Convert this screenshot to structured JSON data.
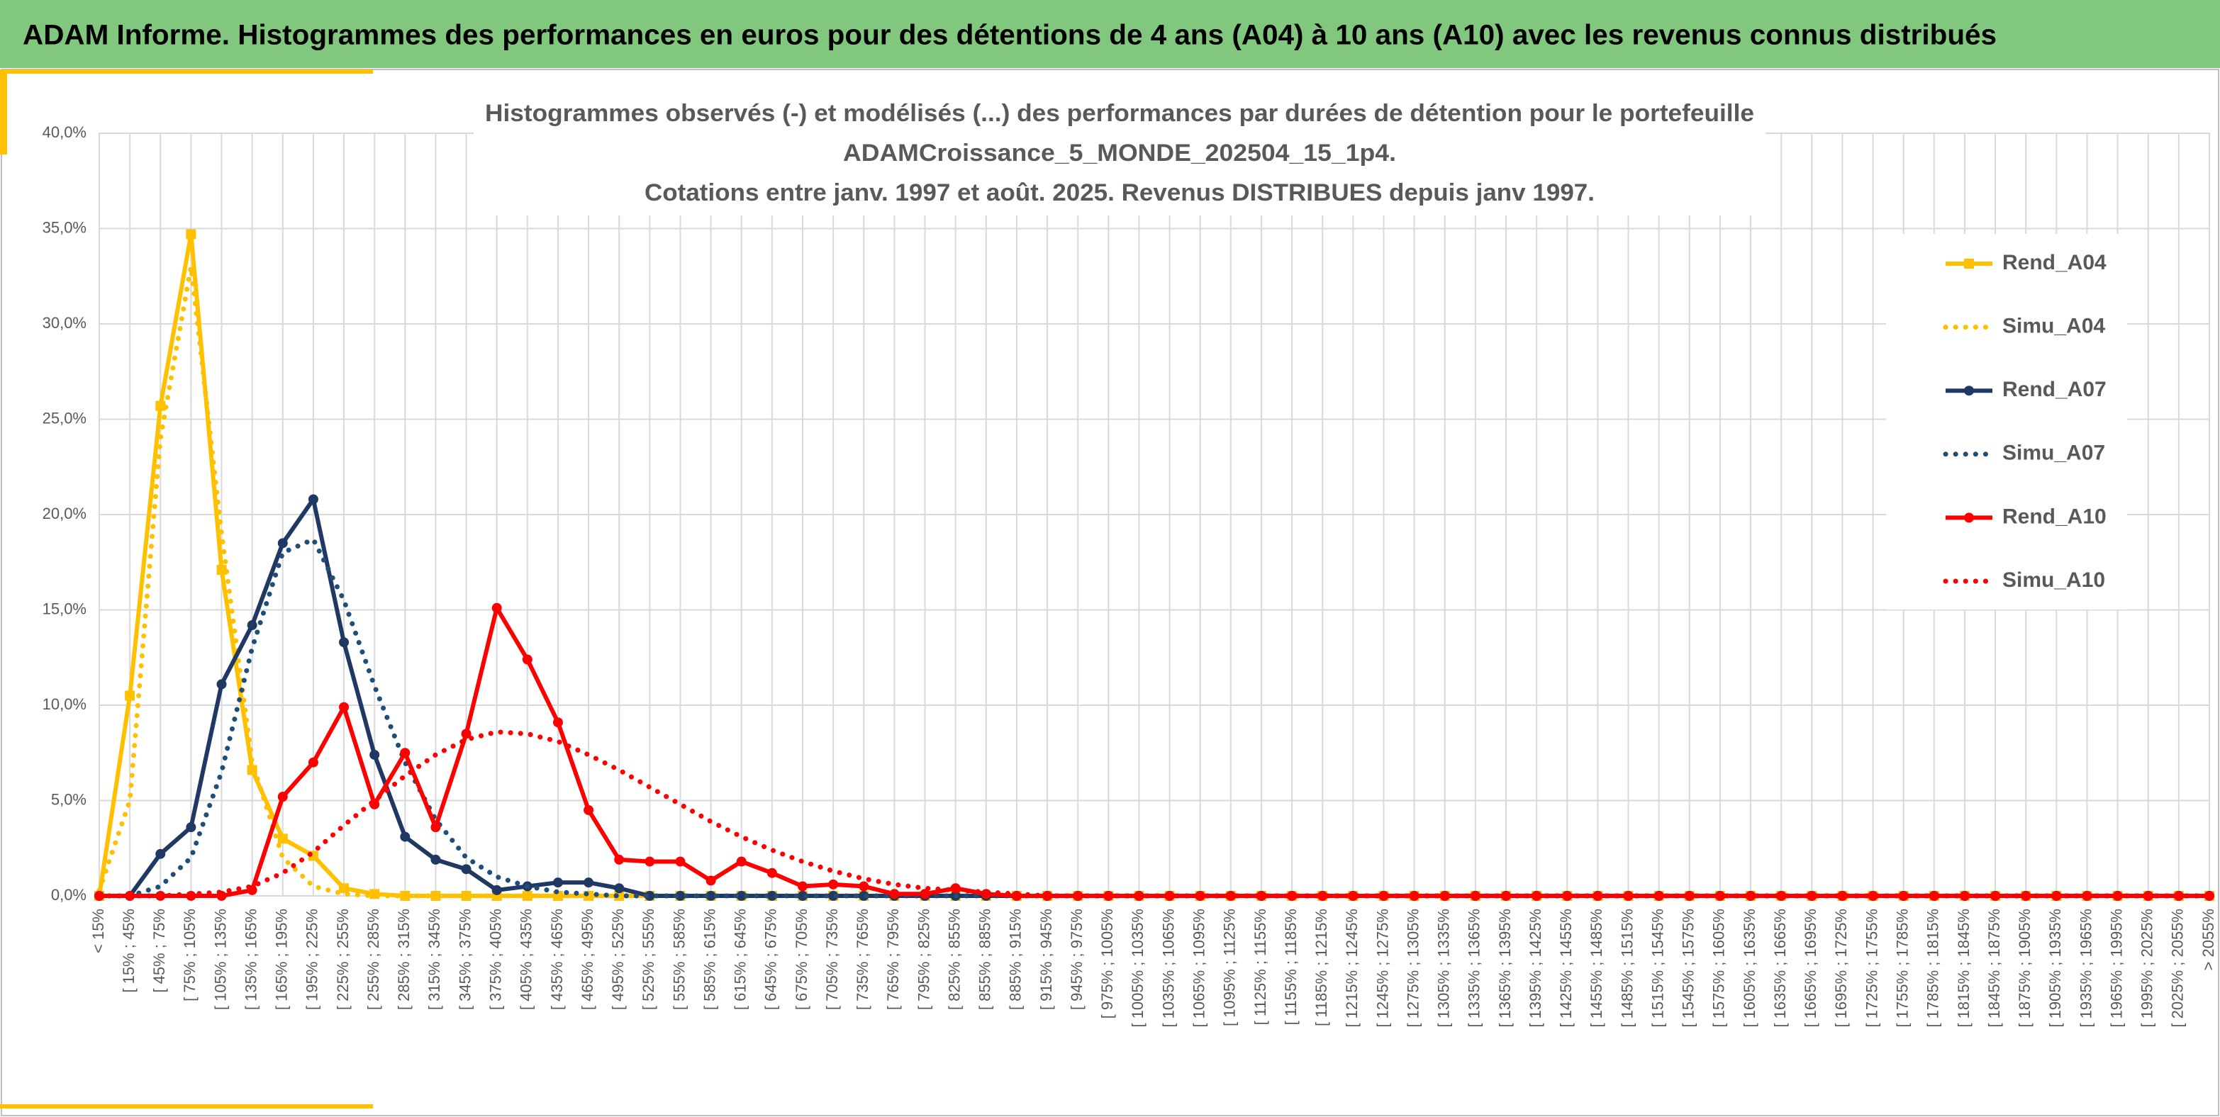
{
  "header": {
    "title": "ADAM Informe. Histogrammes des performances en euros pour des détentions de 4 ans (A04) à 10 ans (A10) avec les revenus connus distribués"
  },
  "chart_data": {
    "type": "line",
    "title": [
      "Histogrammes observés (-) et modélisés (...) des performances par durées de détention pour le portefeuille",
      "ADAMCroissance_5_MONDE_202504_15_1p4.",
      "Cotations entre janv. 1997 et août. 2025. Revenus DISTRIBUES depuis janv 1997."
    ],
    "categories": [
      "< 15%",
      "[ 15% ; 45%",
      "[ 45% ; 75%",
      "[ 75% ; 105%",
      "[ 105% ; 135%",
      "[ 135% ; 165%",
      "[ 165% ; 195%",
      "[ 195% ; 225%",
      "[ 225% ; 255%",
      "[ 255% ; 285%",
      "[ 285% ; 315%",
      "[ 315% ; 345%",
      "[ 345% ; 375%",
      "[ 375% ; 405%",
      "[ 405% ; 435%",
      "[ 435% ; 465%",
      "[ 465% ; 495%",
      "[ 495% ; 525%",
      "[ 525% ; 555%",
      "[ 555% ; 585%",
      "[ 585% ; 615%",
      "[ 615% ; 645%",
      "[ 645% ; 675%",
      "[ 675% ; 705%",
      "[ 705% ; 735%",
      "[ 735% ; 765%",
      "[ 765% ; 795%",
      "[ 795% ; 825%",
      "[ 825% ; 855%",
      "[ 855% ; 885%",
      "[ 885% ; 915%",
      "[ 915% ; 945%",
      "[ 945% ; 975%",
      "[ 975% ; 1005%",
      "[ 1005% ; 1035%",
      "[ 1035% ; 1065%",
      "[ 1065% ; 1095%",
      "[ 1095% ; 1125%",
      "[ 1125% ; 1155%",
      "[ 1155% ; 1185%",
      "[ 1185% ; 1215%",
      "[ 1215% ; 1245%",
      "[ 1245% ; 1275%",
      "[ 1275% ; 1305%",
      "[ 1305% ; 1335%",
      "[ 1335% ; 1365%",
      "[ 1365% ; 1395%",
      "[ 1395% ; 1425%",
      "[ 1425% ; 1455%",
      "[ 1455% ; 1485%",
      "[ 1485% ; 1515%",
      "[ 1515% ; 1545%",
      "[ 1545% ; 1575%",
      "[ 1575% ; 1605%",
      "[ 1605% ; 1635%",
      "[ 1635% ; 1665%",
      "[ 1665% ; 1695%",
      "[ 1695% ; 1725%",
      "[ 1725% ; 1755%",
      "[ 1755% ; 1785%",
      "[ 1785% ; 1815%",
      "[ 1815% ; 1845%",
      "[ 1845% ; 1875%",
      "[ 1875% ; 1905%",
      "[ 1905% ; 1935%",
      "[ 1935% ; 1965%",
      "[ 1965% ; 1995%",
      "[ 1995% ; 2025%",
      "[ 2025% ; 2055%",
      "> 2055%"
    ],
    "series": [
      {
        "name": "Rend_A04",
        "color": "#FFC000",
        "dash": "solid",
        "marker": "square",
        "values": [
          0,
          10.5,
          25.7,
          34.7,
          17.1,
          6.6,
          3.0,
          2.1,
          0.4,
          0.1,
          0,
          0,
          0,
          0,
          0,
          0,
          0,
          0,
          0,
          0,
          0,
          0,
          0,
          0,
          0,
          0,
          0,
          0,
          0,
          0,
          0,
          0,
          0,
          0,
          0,
          0,
          0,
          0,
          0,
          0,
          0,
          0,
          0,
          0,
          0,
          0,
          0,
          0,
          0,
          0,
          0,
          0,
          0,
          0,
          0,
          0,
          0,
          0,
          0,
          0,
          0,
          0,
          0,
          0,
          0,
          0,
          0,
          0,
          0,
          0
        ]
      },
      {
        "name": "Simu_A04",
        "color": "#FFC000",
        "dash": "dotted",
        "marker": null,
        "values": [
          0.3,
          5,
          24,
          33,
          19,
          7,
          2,
          0.5,
          0.1,
          0,
          0,
          0,
          0,
          0,
          0,
          0,
          0,
          0,
          0,
          0,
          0,
          0,
          0,
          0,
          0,
          0,
          0,
          0,
          0,
          0,
          0,
          0,
          0,
          0,
          0,
          0,
          0,
          0,
          0,
          0,
          0,
          0,
          0,
          0,
          0,
          0,
          0,
          0,
          0,
          0,
          0,
          0,
          0,
          0,
          0,
          0,
          0,
          0,
          0,
          0,
          0,
          0,
          0,
          0,
          0,
          0,
          0,
          0,
          0,
          0
        ]
      },
      {
        "name": "Rend_A07",
        "color": "#1F3864",
        "dash": "solid",
        "marker": "circle",
        "values": [
          0,
          0,
          2.2,
          3.6,
          11.1,
          14.2,
          18.5,
          20.8,
          13.3,
          7.4,
          3.1,
          1.9,
          1.4,
          0.3,
          0.5,
          0.7,
          0.7,
          0.4,
          0,
          0,
          0,
          0,
          0,
          0,
          0,
          0,
          0,
          0,
          0,
          0,
          0,
          0,
          0,
          0,
          0,
          0,
          0,
          0,
          0,
          0,
          0,
          0,
          0,
          0,
          0,
          0,
          0,
          0,
          0,
          0,
          0,
          0,
          0,
          0,
          0,
          0,
          0,
          0,
          0,
          0,
          0,
          0,
          0,
          0,
          0,
          0,
          0,
          0,
          0,
          0
        ]
      },
      {
        "name": "Simu_A07",
        "color": "#1F4E79",
        "dash": "dotted",
        "marker": null,
        "values": [
          0,
          0,
          0.5,
          2,
          6.5,
          13,
          18,
          18.7,
          15.5,
          11,
          7,
          4,
          2,
          1,
          0.5,
          0.2,
          0.1,
          0,
          0,
          0,
          0,
          0,
          0,
          0,
          0,
          0,
          0,
          0,
          0,
          0,
          0,
          0,
          0,
          0,
          0,
          0,
          0,
          0,
          0,
          0,
          0,
          0,
          0,
          0,
          0,
          0,
          0,
          0,
          0,
          0,
          0,
          0,
          0,
          0,
          0,
          0,
          0,
          0,
          0,
          0,
          0,
          0,
          0,
          0,
          0,
          0,
          0,
          0,
          0,
          0
        ]
      },
      {
        "name": "Rend_A10",
        "color": "#FF0000",
        "dash": "solid",
        "marker": "circle",
        "values": [
          0,
          0,
          0,
          0,
          0,
          0.3,
          5.2,
          7.0,
          9.9,
          4.8,
          7.5,
          3.6,
          8.5,
          15.1,
          12.4,
          9.1,
          4.5,
          1.9,
          1.8,
          1.8,
          0.8,
          1.8,
          1.2,
          0.5,
          0.6,
          0.5,
          0.1,
          0.1,
          0.4,
          0.1,
          0,
          0,
          0,
          0,
          0,
          0,
          0,
          0,
          0,
          0,
          0,
          0,
          0,
          0,
          0,
          0,
          0,
          0,
          0,
          0,
          0,
          0,
          0,
          0,
          0,
          0,
          0,
          0,
          0,
          0,
          0,
          0,
          0,
          0,
          0,
          0,
          0,
          0,
          0,
          0
        ]
      },
      {
        "name": "Simu_A10",
        "color": "#FF0000",
        "dash": "dotted",
        "marker": null,
        "values": [
          0,
          0,
          0,
          0.1,
          0.2,
          0.5,
          1.2,
          2.3,
          3.7,
          5.0,
          6.3,
          7.4,
          8.2,
          8.6,
          8.5,
          8.1,
          7.4,
          6.6,
          5.7,
          4.8,
          3.9,
          3.1,
          2.4,
          1.8,
          1.3,
          0.9,
          0.6,
          0.4,
          0.3,
          0.2,
          0.1,
          0,
          0,
          0,
          0,
          0,
          0,
          0,
          0,
          0,
          0,
          0,
          0,
          0,
          0,
          0,
          0,
          0,
          0,
          0,
          0,
          0,
          0,
          0,
          0,
          0,
          0,
          0,
          0,
          0,
          0,
          0,
          0,
          0,
          0,
          0,
          0,
          0,
          0,
          0
        ]
      }
    ],
    "ylim": [
      0,
      40
    ],
    "yticks": [
      {
        "value": 0,
        "label": "0,0%"
      },
      {
        "value": 5,
        "label": "5,0%"
      },
      {
        "value": 10,
        "label": "10,0%"
      },
      {
        "value": 15,
        "label": "15,0%"
      },
      {
        "value": 20,
        "label": "20,0%"
      },
      {
        "value": 25,
        "label": "25,0%"
      },
      {
        "value": 30,
        "label": "30,0%"
      },
      {
        "value": 35,
        "label": "35,0%"
      },
      {
        "value": 40,
        "label": "40,0%"
      }
    ],
    "grid": true,
    "legend": "right"
  }
}
